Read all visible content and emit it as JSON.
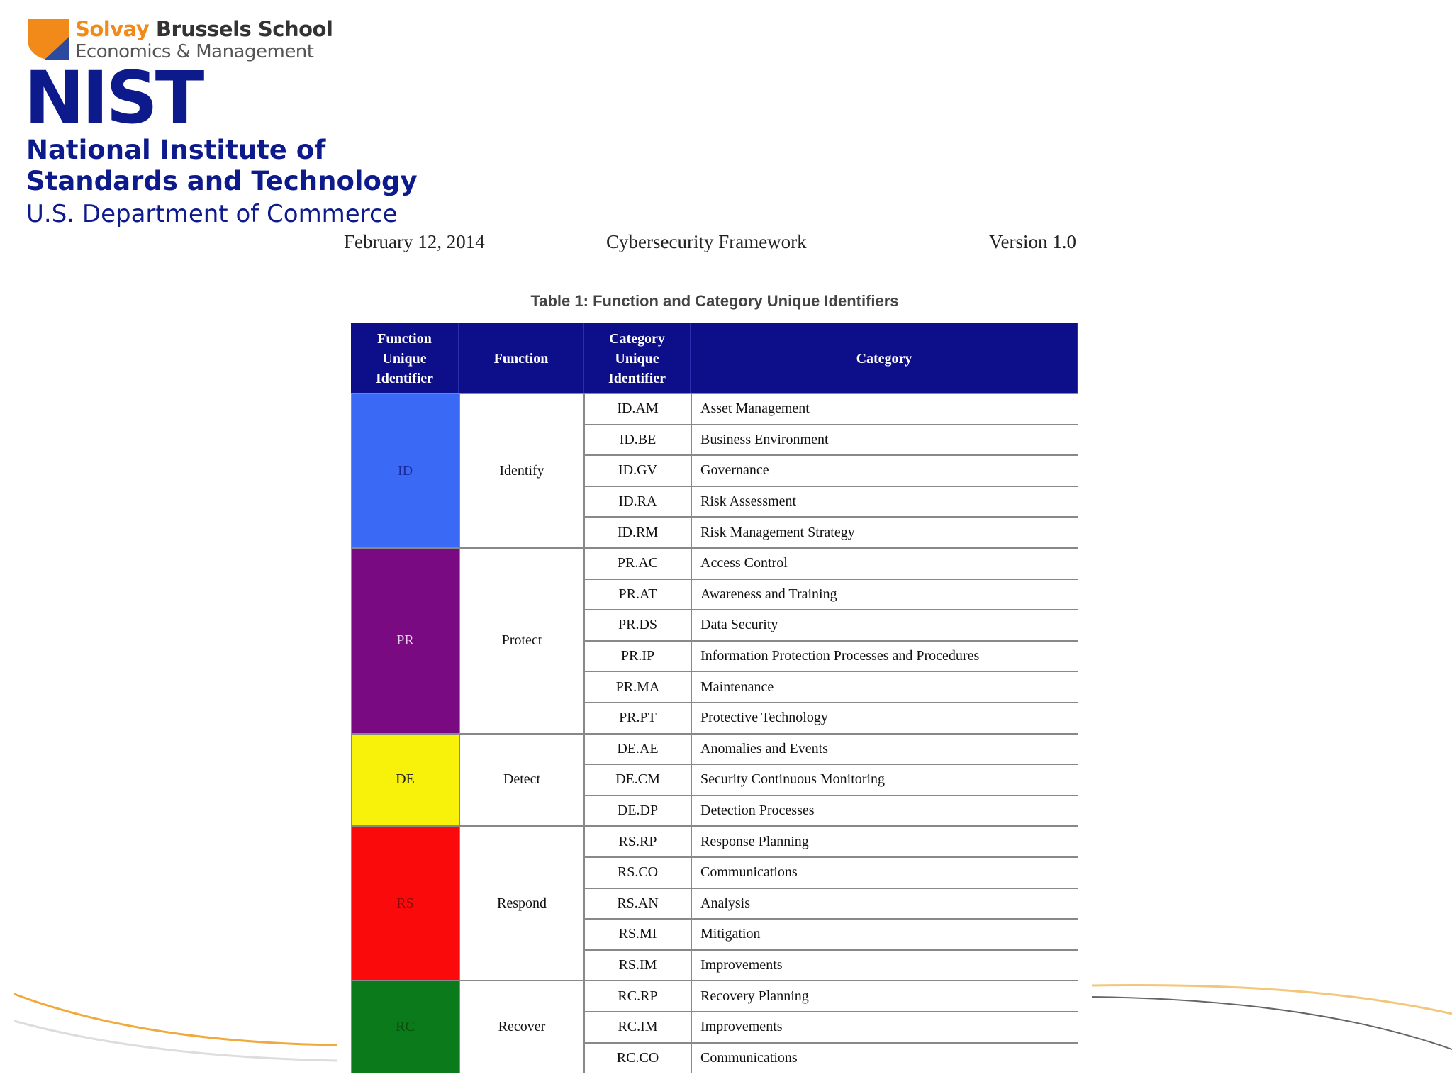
{
  "logos": {
    "solvay": {
      "brand": "Solvay",
      "school": "Brussels School",
      "line2": "Economics & Management"
    },
    "nist": {
      "mark": "NIST",
      "line1": "National Institute of",
      "line2": "Standards and Technology",
      "line3": "U.S. Department of Commerce"
    }
  },
  "header": {
    "date": "February 12, 2014",
    "title": "Cybersecurity Framework",
    "version": "Version 1.0"
  },
  "table": {
    "caption": "Table 1: Function and Category Unique Identifiers",
    "columns": [
      "Function Unique Identifier",
      "Function",
      "Category Unique Identifier",
      "Category"
    ],
    "functions": [
      {
        "id": "ID",
        "name": "Identify",
        "color": "#3a6af5",
        "label_color": "#1a2a9a",
        "categories": [
          {
            "id": "ID.AM",
            "name": "Asset Management"
          },
          {
            "id": "ID.BE",
            "name": "Business Environment"
          },
          {
            "id": "ID.GV",
            "name": "Governance"
          },
          {
            "id": "ID.RA",
            "name": "Risk Assessment"
          },
          {
            "id": "ID.RM",
            "name": "Risk Management Strategy"
          }
        ]
      },
      {
        "id": "PR",
        "name": "Protect",
        "color": "#7a0a82",
        "label_color": "#e6d0ea",
        "categories": [
          {
            "id": "PR.AC",
            "name": "Access Control"
          },
          {
            "id": "PR.AT",
            "name": "Awareness and Training"
          },
          {
            "id": "PR.DS",
            "name": "Data Security"
          },
          {
            "id": "PR.IP",
            "name": "Information Protection Processes and Procedures"
          },
          {
            "id": "PR.MA",
            "name": "Maintenance"
          },
          {
            "id": "PR.PT",
            "name": "Protective Technology"
          }
        ]
      },
      {
        "id": "DE",
        "name": "Detect",
        "color": "#f8f20a",
        "label_color": "#222222",
        "categories": [
          {
            "id": "DE.AE",
            "name": "Anomalies and Events"
          },
          {
            "id": "DE.CM",
            "name": "Security Continuous Monitoring"
          },
          {
            "id": "DE.DP",
            "name": "Detection Processes"
          }
        ]
      },
      {
        "id": "RS",
        "name": "Respond",
        "color": "#fa0a0a",
        "label_color": "#8a0a0a",
        "categories": [
          {
            "id": "RS.RP",
            "name": "Response Planning"
          },
          {
            "id": "RS.CO",
            "name": "Communications"
          },
          {
            "id": "RS.AN",
            "name": "Analysis"
          },
          {
            "id": "RS.MI",
            "name": "Mitigation"
          },
          {
            "id": "RS.IM",
            "name": "Improvements"
          }
        ]
      },
      {
        "id": "RC",
        "name": "Recover",
        "color": "#0a7a1a",
        "label_color": "#0a4a10",
        "categories": [
          {
            "id": "RC.RP",
            "name": "Recovery Planning"
          },
          {
            "id": "RC.IM",
            "name": "Improvements"
          },
          {
            "id": "RC.CO",
            "name": "Communications"
          }
        ]
      }
    ]
  }
}
